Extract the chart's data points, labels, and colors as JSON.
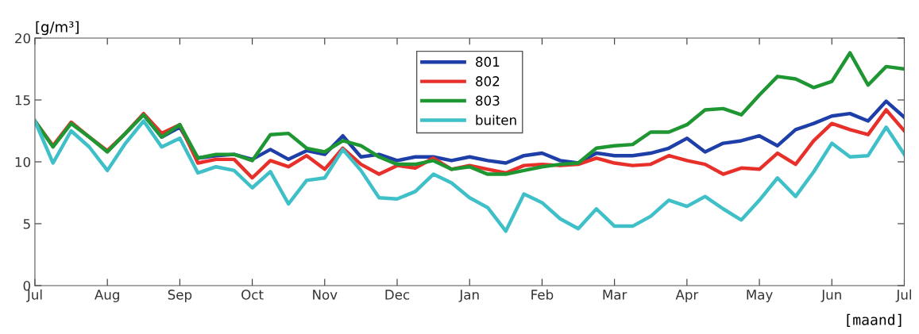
{
  "chart_data": {
    "type": "line",
    "ylabel": "[g/m³]",
    "xlabel": "[maand]",
    "categories": [
      "Jul",
      null,
      null,
      null,
      "Aug",
      null,
      null,
      null,
      "Sep",
      null,
      null,
      null,
      "Oct",
      null,
      null,
      null,
      "Nov",
      null,
      null,
      null,
      "Dec",
      null,
      null,
      null,
      "Jan",
      null,
      null,
      null,
      "Feb",
      null,
      null,
      null,
      "Mar",
      null,
      null,
      null,
      "Apr",
      null,
      null,
      null,
      "May",
      null,
      null,
      null,
      "Jun",
      null,
      null,
      null,
      "Jul"
    ],
    "series": [
      {
        "name": "801",
        "color": "#1f3fa8",
        "values": [
          null,
          null,
          null,
          null,
          null,
          null,
          13.8,
          12.0,
          12.8,
          10.3,
          10.5,
          10.6,
          10.2,
          11.0,
          10.2,
          10.9,
          10.6,
          12.1,
          10.4,
          10.6,
          10.1,
          10.4,
          10.4,
          10.1,
          10.4,
          10.1,
          9.9,
          10.5,
          10.7,
          10.1,
          9.9,
          10.7,
          10.5,
          10.5,
          10.7,
          11.1,
          11.9,
          10.8,
          11.5,
          11.7,
          12.1,
          11.3,
          12.6,
          13.1,
          13.7,
          13.9,
          13.3,
          14.9,
          13.6
        ]
      },
      {
        "name": "802",
        "color": "#e8302a",
        "values": [
          13.3,
          11.3,
          13.2,
          12.0,
          10.9,
          12.3,
          13.9,
          12.3,
          13.0,
          9.9,
          10.2,
          10.2,
          8.7,
          10.1,
          9.6,
          10.5,
          9.4,
          11.1,
          9.8,
          9.0,
          9.7,
          9.5,
          10.3,
          9.4,
          9.7,
          9.4,
          9.1,
          9.7,
          9.8,
          9.7,
          9.8,
          10.3,
          9.9,
          9.7,
          9.8,
          10.5,
          10.1,
          9.8,
          9.0,
          9.5,
          9.4,
          10.7,
          9.8,
          11.7,
          13.1,
          12.6,
          12.2,
          14.2,
          12.5
        ]
      },
      {
        "name": "803",
        "color": "#1e9632",
        "values": [
          13.3,
          11.2,
          13.1,
          12.0,
          10.8,
          12.3,
          13.8,
          12.0,
          13.0,
          10.3,
          10.6,
          10.6,
          10.1,
          12.2,
          12.3,
          11.1,
          10.8,
          11.7,
          11.3,
          10.4,
          9.8,
          9.8,
          10.1,
          9.4,
          9.6,
          9.0,
          9.0,
          9.3,
          9.6,
          9.8,
          9.9,
          11.1,
          11.3,
          11.4,
          12.4,
          12.4,
          13.0,
          14.2,
          14.3,
          13.8,
          15.4,
          16.9,
          16.7,
          16.0,
          16.5,
          18.8,
          16.2,
          17.7,
          17.5
        ]
      },
      {
        "name": "buiten",
        "color": "#3fc0c8",
        "values": [
          13.3,
          9.9,
          12.5,
          11.2,
          9.3,
          11.5,
          13.3,
          11.2,
          11.9,
          9.1,
          9.6,
          9.3,
          7.9,
          9.2,
          6.6,
          8.5,
          8.7,
          11.0,
          9.3,
          7.1,
          7.0,
          7.6,
          9.0,
          8.3,
          7.1,
          6.3,
          4.4,
          7.4,
          6.7,
          5.4,
          4.6,
          6.2,
          4.8,
          4.8,
          5.6,
          6.9,
          6.4,
          7.2,
          6.2,
          5.3,
          6.9,
          8.7,
          7.2,
          9.2,
          11.5,
          10.4,
          10.5,
          12.8,
          10.6
        ]
      }
    ],
    "ylim": [
      0,
      20
    ],
    "yticks": [
      0,
      5,
      10,
      15,
      20
    ],
    "grid": false,
    "legend": "top",
    "line_style": "solid",
    "marker": "none"
  }
}
